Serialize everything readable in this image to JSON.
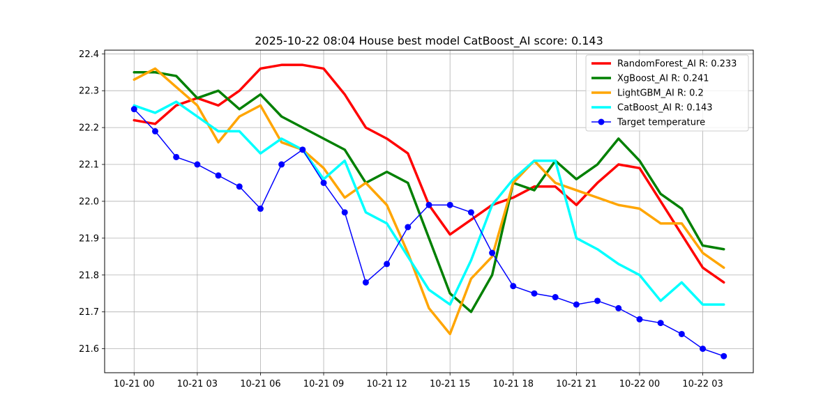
{
  "chart_data": {
    "type": "line",
    "title": "2025-10-22 08:04 House best model CatBoost_AI score: 0.143",
    "xlabel": "",
    "ylabel": "",
    "x_tick_labels": [
      "10-21 00",
      "10-21 03",
      "10-21 06",
      "10-21 09",
      "10-21 12",
      "10-21 15",
      "10-21 18",
      "10-21 21",
      "10-22 00",
      "10-22 03"
    ],
    "x_tick_hours": [
      0,
      3,
      6,
      9,
      12,
      15,
      18,
      21,
      24,
      27
    ],
    "x_hours": [
      0,
      1,
      2,
      3,
      4,
      5,
      6,
      7,
      8,
      9,
      10,
      11,
      12,
      13,
      14,
      15,
      16,
      17,
      18,
      19,
      20,
      21,
      22,
      23,
      24,
      25,
      26,
      27,
      28
    ],
    "xlim_hours": [
      -1.4,
      29.4
    ],
    "y_ticks": [
      21.6,
      21.7,
      21.8,
      21.9,
      22.0,
      22.1,
      22.2,
      22.3,
      22.4
    ],
    "y_tick_labels": [
      "21.6",
      "21.7",
      "21.8",
      "21.9",
      "22.0",
      "22.1",
      "22.2",
      "22.3",
      "22.4"
    ],
    "ylim": [
      21.535,
      22.41
    ],
    "grid": true,
    "legend_position": "top-right",
    "series": [
      {
        "name": "RandomForest_AI R: 0.233",
        "color": "#ff0000",
        "marker": false,
        "values": [
          22.22,
          22.21,
          22.26,
          22.28,
          22.26,
          22.3,
          22.36,
          22.37,
          22.37,
          22.36,
          22.29,
          22.2,
          22.17,
          22.13,
          21.99,
          21.91,
          21.95,
          21.99,
          22.01,
          22.04,
          22.04,
          21.99,
          22.05,
          22.1,
          22.09,
          22.0,
          21.91,
          21.82,
          21.78
        ]
      },
      {
        "name": "XgBoost_AI R: 0.241",
        "color": "#008000",
        "marker": false,
        "values": [
          22.35,
          22.35,
          22.34,
          22.28,
          22.3,
          22.25,
          22.29,
          22.23,
          22.2,
          22.17,
          22.14,
          22.05,
          22.08,
          22.05,
          21.9,
          21.75,
          21.7,
          21.8,
          22.05,
          22.03,
          22.11,
          22.06,
          22.1,
          22.17,
          22.11,
          22.02,
          21.98,
          21.88,
          21.87
        ]
      },
      {
        "name": "LightGBM_AI R: 0.2",
        "color": "#ffa500",
        "marker": false,
        "values": [
          22.33,
          22.36,
          22.31,
          22.26,
          22.16,
          22.23,
          22.26,
          22.16,
          22.14,
          22.09,
          22.01,
          22.05,
          21.99,
          21.86,
          21.71,
          21.64,
          21.79,
          21.85,
          22.05,
          22.11,
          22.05,
          22.03,
          22.01,
          21.99,
          21.98,
          21.94,
          21.94,
          21.86,
          21.82
        ]
      },
      {
        "name": "CatBoost_AI R: 0.143",
        "color": "#00ffff",
        "marker": false,
        "values": [
          22.26,
          22.24,
          22.27,
          22.23,
          22.19,
          22.19,
          22.13,
          22.17,
          22.14,
          22.06,
          22.11,
          21.97,
          21.94,
          21.85,
          21.76,
          21.72,
          21.84,
          21.99,
          22.06,
          22.11,
          22.11,
          21.9,
          21.87,
          21.83,
          21.8,
          21.73,
          21.78,
          21.72,
          21.72
        ]
      },
      {
        "name": "Target temperature",
        "color": "#0000ff",
        "marker": true,
        "values": [
          22.25,
          22.19,
          22.12,
          22.1,
          22.07,
          22.04,
          21.98,
          22.1,
          22.14,
          22.05,
          21.97,
          21.78,
          21.83,
          21.93,
          21.99,
          21.99,
          21.97,
          21.86,
          21.77,
          21.75,
          21.74,
          21.72,
          21.73,
          21.71,
          21.68,
          21.67,
          21.64,
          21.6,
          21.58
        ]
      }
    ]
  }
}
